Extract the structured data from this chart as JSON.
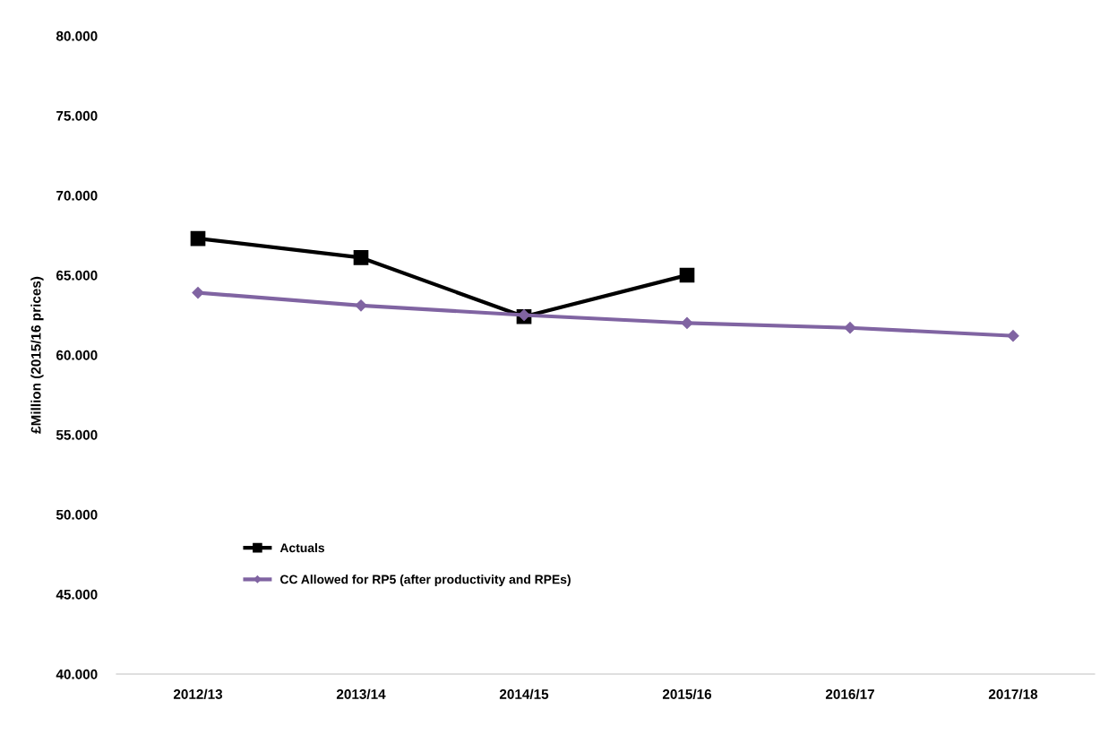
{
  "chart_data": {
    "type": "line",
    "ylabel": "£Million (2015/16 prices)",
    "categories": [
      "2012/13",
      "2013/14",
      "2014/15",
      "2015/16",
      "2016/17",
      "2017/18"
    ],
    "series": [
      {
        "name": "Actuals",
        "color": "#000000",
        "marker": "square",
        "values": [
          67.3,
          66.1,
          62.4,
          65.0,
          null,
          null
        ]
      },
      {
        "name": "CC Allowed for RP5 (after productivity and RPEs)",
        "color": "#8064a2",
        "marker": "diamond",
        "values": [
          63.9,
          63.1,
          62.5,
          62.0,
          61.7,
          61.2
        ]
      }
    ],
    "ylim": [
      40,
      80
    ],
    "yticks": [
      {
        "value": 40,
        "label": "40.000"
      },
      {
        "value": 45,
        "label": "45.000"
      },
      {
        "value": 50,
        "label": "50.000"
      },
      {
        "value": 55,
        "label": "55.000"
      },
      {
        "value": 60,
        "label": "60.000"
      },
      {
        "value": 65,
        "label": "65.000"
      },
      {
        "value": 70,
        "label": "70.000"
      },
      {
        "value": 75,
        "label": "75.000"
      },
      {
        "value": 80,
        "label": "80.000"
      }
    ],
    "grid": false,
    "legend": "bottom left"
  }
}
